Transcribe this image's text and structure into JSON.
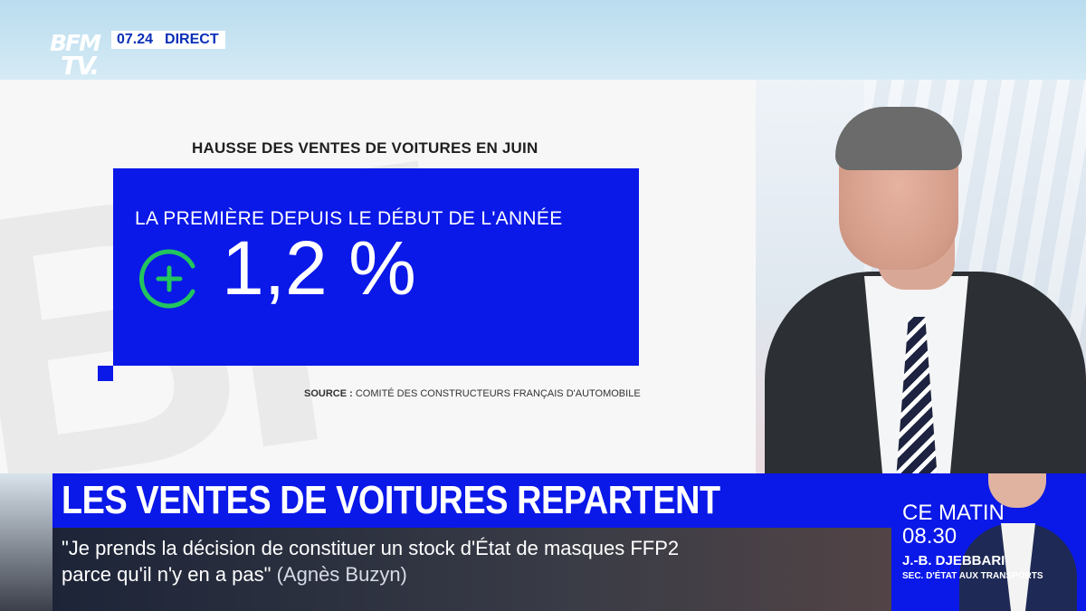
{
  "channel": {
    "logo_line1": "BFM",
    "logo_line2": "TV.",
    "time": "07.24",
    "live_label": "DIRECT"
  },
  "graphic": {
    "title": "HAUSSE DES VENTES DE VOITURES EN JUIN",
    "subtitle": "LA PREMIÈRE DEPUIS LE DÉBUT DE L'ANNÉE",
    "value": "1,2 %",
    "icon": "plus-circle-icon",
    "source_label": "SOURCE :",
    "source_text": "COMITÉ DES CONSTRUCTEURS FRANÇAIS D'AUTOMOBILE"
  },
  "lower_third": {
    "headline": "LES VENTES DE VOITURES REPARTENT",
    "quote_line1": "\"Je prends la décision de constituer un stock d'État de masques FFP2",
    "quote_line2": "parce qu'il n'y en a pas\"",
    "quote_author": "(Agnès Buzyn)"
  },
  "promo": {
    "label": "CE MATIN",
    "time": "08.30",
    "guest_name": "J.-B. DJEBBARI",
    "guest_title": "SEC. D'ÉTAT AUX TRANSPORTS"
  },
  "colors": {
    "brand_blue": "#0a18e8",
    "accent_green": "#22c55e"
  }
}
